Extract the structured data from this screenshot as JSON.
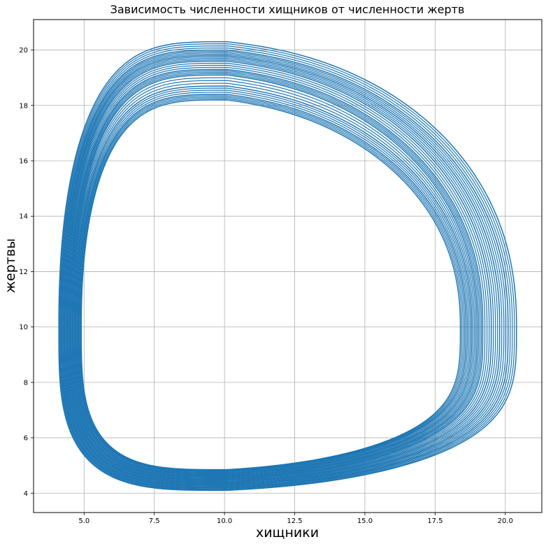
{
  "chart_data": {
    "type": "line",
    "title": "Зависимость численности хищников от численности жертв",
    "xlabel": "хищники",
    "ylabel": "жертвы",
    "xlim": [
      3.2,
      21.3
    ],
    "ylim": [
      3.3,
      21.1
    ],
    "xticks": [
      5.0,
      7.5,
      10.0,
      12.5,
      15.0,
      17.5,
      20.0
    ],
    "xtick_labels": [
      "5.0",
      "7.5",
      "10.0",
      "12.5",
      "15.0",
      "17.5",
      "20.0"
    ],
    "yticks": [
      4,
      6,
      8,
      10,
      12,
      14,
      16,
      18,
      20
    ],
    "ytick_labels": [
      "4",
      "6",
      "8",
      "10",
      "12",
      "14",
      "16",
      "18",
      "20"
    ],
    "grid": true,
    "line_color": "#1f77b4",
    "series": [
      {
        "description_note_free": true,
        "loops": [
          {
            "x_min": 4.1,
            "x_max": 20.4,
            "y_min": 4.1,
            "y_max": 20.3
          },
          {
            "x_min": 4.2,
            "x_max": 20.1,
            "y_min": 4.2,
            "y_max": 20.0
          },
          {
            "x_min": 4.3,
            "x_max": 19.8,
            "y_min": 4.3,
            "y_max": 19.8
          },
          {
            "x_min": 4.4,
            "x_max": 19.5,
            "y_min": 4.4,
            "y_max": 19.6
          },
          {
            "x_min": 4.5,
            "x_max": 19.2,
            "y_min": 4.5,
            "y_max": 19.3
          },
          {
            "x_min": 4.6,
            "x_max": 19.0,
            "y_min": 4.6,
            "y_max": 19.1
          },
          {
            "x_min": 4.7,
            "x_max": 18.8,
            "y_min": 4.7,
            "y_max": 18.7
          },
          {
            "x_min": 4.8,
            "x_max": 18.6,
            "y_min": 4.8,
            "y_max": 18.4
          },
          {
            "x_min": 4.9,
            "x_max": 18.4,
            "y_min": 4.85,
            "y_max": 18.2
          }
        ]
      }
    ]
  }
}
